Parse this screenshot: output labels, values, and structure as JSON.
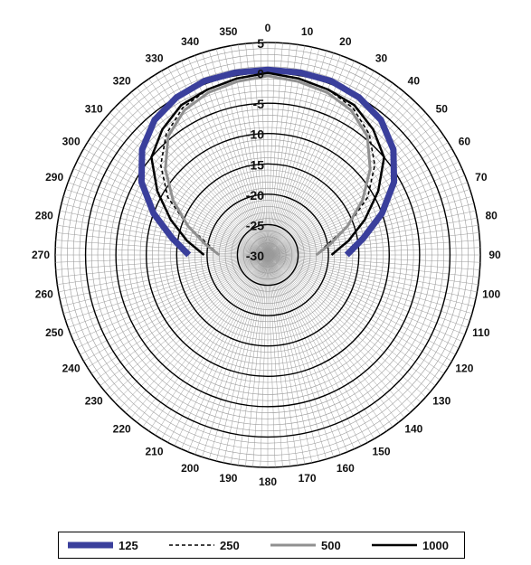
{
  "chart_data": {
    "type": "polar-line",
    "title": "",
    "angle_direction": "clockwise",
    "angle_zero": "top",
    "angle_ticks": [
      0,
      10,
      20,
      30,
      40,
      50,
      60,
      70,
      80,
      90,
      100,
      110,
      120,
      130,
      140,
      150,
      160,
      170,
      180,
      190,
      200,
      210,
      220,
      230,
      240,
      250,
      260,
      270,
      280,
      290,
      300,
      310,
      320,
      330,
      340,
      350
    ],
    "radial_range": [
      -30,
      5
    ],
    "radial_ticks": [
      5,
      0,
      -5,
      -10,
      -15,
      -20,
      -25,
      -30
    ],
    "grid": true,
    "legend_position": "bottom",
    "series": [
      {
        "name": "125",
        "color": "#3a3f9c",
        "style": "thick",
        "angles": [
          0,
          10,
          20,
          30,
          40,
          50,
          60,
          70,
          80,
          90,
          270,
          280,
          290,
          300,
          310,
          320,
          330,
          340,
          350
        ],
        "values": [
          0.5,
          0.5,
          0.5,
          0,
          -1,
          -3,
          -6,
          -10,
          -14,
          -17,
          -17,
          -14,
          -10,
          -6,
          -3,
          -1,
          0,
          0.5,
          0.5
        ]
      },
      {
        "name": "250",
        "color": "#000000",
        "style": "dashed",
        "angles": [
          0,
          10,
          20,
          30,
          40,
          50,
          60,
          70,
          80,
          90,
          270,
          280,
          290,
          300,
          310,
          320,
          330,
          340,
          350
        ],
        "values": [
          0,
          -0.5,
          -1,
          -2,
          -4,
          -7,
          -11,
          -16,
          -20,
          -22,
          -22,
          -20,
          -16,
          -11,
          -7,
          -4,
          -2,
          -1,
          -0.5
        ]
      },
      {
        "name": "500",
        "color": "#909090",
        "style": "medium",
        "angles": [
          0,
          10,
          20,
          30,
          40,
          50,
          60,
          70,
          80,
          90,
          270,
          280,
          290,
          300,
          310,
          320,
          330,
          340,
          350
        ],
        "values": [
          -0.5,
          -1,
          -1.5,
          -2.5,
          -4.5,
          -8,
          -12,
          -16,
          -19.5,
          -22,
          -22,
          -19.5,
          -16,
          -12,
          -8,
          -4.5,
          -2.5,
          -1.5,
          -1
        ]
      },
      {
        "name": "1000",
        "color": "#000000",
        "style": "solid",
        "angles": [
          0,
          10,
          20,
          30,
          40,
          50,
          60,
          70,
          80,
          90,
          270,
          280,
          290,
          300,
          310,
          320,
          330,
          340,
          350
        ],
        "values": [
          0,
          -0.5,
          -1,
          -1.5,
          -3,
          -5,
          -9,
          -13,
          -16.5,
          -19.5,
          -19.5,
          -16.5,
          -13,
          -9,
          -5,
          -3,
          -1.5,
          -1,
          -0.5
        ]
      }
    ]
  }
}
